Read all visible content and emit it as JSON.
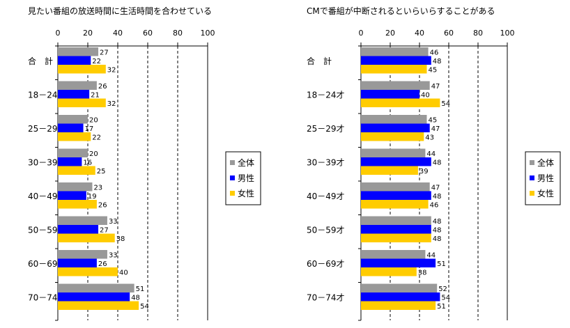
{
  "colors": {
    "zentai": "#999999",
    "dansei": "#0000ff",
    "josei": "#ffcc00"
  },
  "chart_data": [
    {
      "type": "bar",
      "orientation": "horizontal",
      "title": "見たい番組の放送時間に生活時間を合わせている",
      "xlim": [
        0,
        100
      ],
      "ticks": [
        "0",
        "20",
        "40",
        "60",
        "80",
        "100"
      ],
      "categories": [
        "合　計",
        "18－24才",
        "25－29才",
        "30－39才",
        "40－49才",
        "50－59才",
        "60－69才",
        "70－74才"
      ],
      "series": [
        {
          "name": "全体",
          "values": [
            27,
            26,
            20,
            20,
            23,
            33,
            33,
            51
          ]
        },
        {
          "name": "男性",
          "values": [
            22,
            21,
            17,
            16,
            19,
            27,
            26,
            48
          ]
        },
        {
          "name": "女性",
          "values": [
            32,
            32,
            22,
            25,
            26,
            38,
            40,
            54
          ]
        }
      ],
      "legend": "right",
      "gridlines": "dashed-vertical"
    },
    {
      "type": "bar",
      "orientation": "horizontal",
      "title": "CMで番組が中断されるといらいらすることがある",
      "xlim": [
        0,
        100
      ],
      "ticks": [
        "0",
        "20",
        "40",
        "60",
        "80",
        "100"
      ],
      "categories": [
        "合　計",
        "18－24才",
        "25－29才",
        "30－39才",
        "40－49才",
        "50－59才",
        "60－69才",
        "70－74才"
      ],
      "series": [
        {
          "name": "全体",
          "values": [
            46,
            47,
            45,
            44,
            47,
            48,
            44,
            52
          ]
        },
        {
          "name": "男性",
          "values": [
            48,
            40,
            47,
            48,
            48,
            48,
            51,
            54
          ]
        },
        {
          "name": "女性",
          "values": [
            45,
            54,
            43,
            39,
            46,
            48,
            38,
            51
          ]
        }
      ],
      "legend": "right",
      "gridlines": "dashed-vertical"
    }
  ]
}
